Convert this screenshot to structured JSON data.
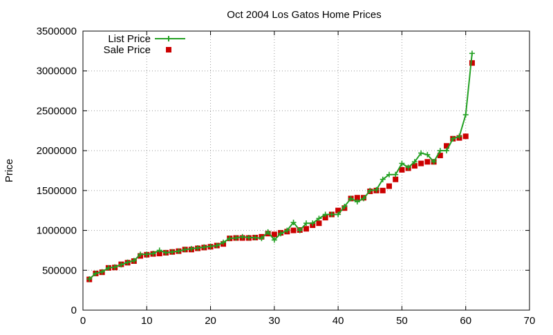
{
  "chart_data": {
    "type": "line",
    "title": "Oct 2004 Los Gatos Home Prices",
    "xlabel": "",
    "ylabel": "Price",
    "xlim": [
      0,
      70
    ],
    "ylim": [
      0,
      3500000
    ],
    "xticks": [
      "0",
      "10",
      "20",
      "30",
      "40",
      "50",
      "60",
      "70"
    ],
    "yticks": [
      "0",
      "500000",
      "1000000",
      "1500000",
      "2000000",
      "2500000",
      "3000000",
      "3500000"
    ],
    "grid": true,
    "legend_position": "top-left",
    "series": [
      {
        "name": "List Price",
        "style": "line+cross",
        "color": "#22a022",
        "points": [
          [
            1,
            390000
          ],
          [
            2,
            460000
          ],
          [
            3,
            480000
          ],
          [
            4,
            530000
          ],
          [
            5,
            540000
          ],
          [
            6,
            570000
          ],
          [
            7,
            600000
          ],
          [
            8,
            620000
          ],
          [
            9,
            700000
          ],
          [
            10,
            700000
          ],
          [
            11,
            710000
          ],
          [
            12,
            750000
          ],
          [
            13,
            720000
          ],
          [
            14,
            730000
          ],
          [
            15,
            740000
          ],
          [
            16,
            760000
          ],
          [
            17,
            770000
          ],
          [
            18,
            780000
          ],
          [
            19,
            790000
          ],
          [
            20,
            800000
          ],
          [
            21,
            810000
          ],
          [
            22,
            850000
          ],
          [
            23,
            900000
          ],
          [
            24,
            905000
          ],
          [
            25,
            920000
          ],
          [
            26,
            910000
          ],
          [
            27,
            910000
          ],
          [
            28,
            900000
          ],
          [
            29,
            980000
          ],
          [
            30,
            880000
          ],
          [
            31,
            960000
          ],
          [
            32,
            1000000
          ],
          [
            33,
            1100000
          ],
          [
            34,
            1000000
          ],
          [
            35,
            1090000
          ],
          [
            36,
            1090000
          ],
          [
            37,
            1150000
          ],
          [
            38,
            1200000
          ],
          [
            39,
            1200000
          ],
          [
            40,
            1200000
          ],
          [
            41,
            1300000
          ],
          [
            42,
            1400000
          ],
          [
            43,
            1360000
          ],
          [
            44,
            1400000
          ],
          [
            45,
            1500000
          ],
          [
            46,
            1510000
          ],
          [
            47,
            1640000
          ],
          [
            48,
            1700000
          ],
          [
            49,
            1700000
          ],
          [
            50,
            1840000
          ],
          [
            51,
            1790000
          ],
          [
            52,
            1860000
          ],
          [
            53,
            1970000
          ],
          [
            54,
            1950000
          ],
          [
            55,
            1860000
          ],
          [
            56,
            2000000
          ],
          [
            57,
            2000000
          ],
          [
            58,
            2150000
          ],
          [
            59,
            2180000
          ],
          [
            60,
            2450000
          ],
          [
            61,
            3220000
          ]
        ]
      },
      {
        "name": "Sale Price",
        "style": "square",
        "color": "#cc0000",
        "points": [
          [
            1,
            385000
          ],
          [
            2,
            460000
          ],
          [
            3,
            475000
          ],
          [
            4,
            530000
          ],
          [
            5,
            535000
          ],
          [
            6,
            575000
          ],
          [
            7,
            595000
          ],
          [
            8,
            615000
          ],
          [
            9,
            680000
          ],
          [
            10,
            695000
          ],
          [
            11,
            705000
          ],
          [
            12,
            710000
          ],
          [
            13,
            720000
          ],
          [
            14,
            730000
          ],
          [
            15,
            740000
          ],
          [
            16,
            760000
          ],
          [
            17,
            760000
          ],
          [
            18,
            775000
          ],
          [
            19,
            785000
          ],
          [
            20,
            795000
          ],
          [
            21,
            810000
          ],
          [
            22,
            830000
          ],
          [
            23,
            900000
          ],
          [
            24,
            905000
          ],
          [
            25,
            905000
          ],
          [
            26,
            905000
          ],
          [
            27,
            910000
          ],
          [
            28,
            920000
          ],
          [
            29,
            960000
          ],
          [
            30,
            950000
          ],
          [
            31,
            970000
          ],
          [
            32,
            985000
          ],
          [
            33,
            1000000
          ],
          [
            34,
            1005000
          ],
          [
            35,
            1020000
          ],
          [
            36,
            1065000
          ],
          [
            37,
            1090000
          ],
          [
            38,
            1160000
          ],
          [
            39,
            1200000
          ],
          [
            40,
            1250000
          ],
          [
            41,
            1280000
          ],
          [
            42,
            1400000
          ],
          [
            43,
            1410000
          ],
          [
            44,
            1410000
          ],
          [
            45,
            1490000
          ],
          [
            46,
            1500000
          ],
          [
            47,
            1500000
          ],
          [
            48,
            1555000
          ],
          [
            49,
            1640000
          ],
          [
            50,
            1760000
          ],
          [
            51,
            1780000
          ],
          [
            52,
            1810000
          ],
          [
            53,
            1840000
          ],
          [
            54,
            1860000
          ],
          [
            55,
            1860000
          ],
          [
            56,
            1940000
          ],
          [
            57,
            2060000
          ],
          [
            58,
            2150000
          ],
          [
            59,
            2160000
          ],
          [
            60,
            2180000
          ],
          [
            61,
            3100000
          ]
        ]
      }
    ]
  }
}
